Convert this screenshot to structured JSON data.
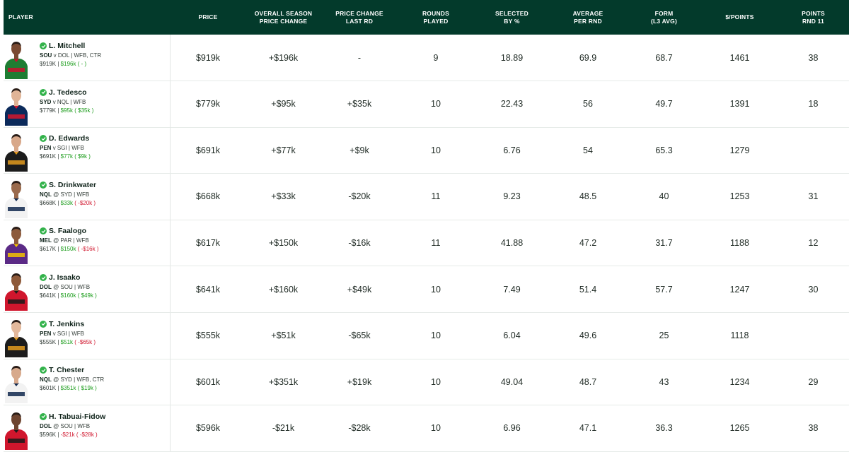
{
  "headers": {
    "player": "PLAYER",
    "price": "PRICE",
    "overall": "OVERALL SEASON\nPRICE CHANGE",
    "change_last": "PRICE CHANGE\nLAST RD",
    "rounds": "ROUNDS\nPLAYED",
    "selected": "SELECTED\nBY %",
    "average": "AVERAGE\nPER RND",
    "form": "FORM\n(L3 AVG)",
    "dollar_points": "$/POINTS",
    "points_rnd": "POINTS\nRND 11"
  },
  "rows": [
    {
      "name": "L. Mitchell",
      "team": "SOU",
      "sep": "v",
      "opp": "DOL",
      "positions": "WFB, CTR",
      "mini_price": "$919K",
      "mini_season": "$196k",
      "mini_last": "-",
      "mini_last_class": "pos",
      "price": "$919k",
      "overall": "+$196k",
      "overall_class": "pos",
      "change_last": "-",
      "change_class": "",
      "rounds": "9",
      "selected": "18.89",
      "average": "69.9",
      "form": "68.7",
      "dollar_points": "1461",
      "points_rnd": "38",
      "jersey": "#1e7d32",
      "jersey2": "#c8102e",
      "skin": "#7a4a32"
    },
    {
      "name": "J. Tedesco",
      "team": "SYD",
      "sep": "v",
      "opp": "NQL",
      "positions": "WFB",
      "mini_price": "$779K",
      "mini_season": "$95k",
      "mini_last": "$35k",
      "mini_last_class": "pos",
      "price": "$779k",
      "overall": "+$95k",
      "overall_class": "pos",
      "change_last": "+$35k",
      "change_class": "pos",
      "rounds": "10",
      "selected": "22.43",
      "average": "56",
      "form": "49.7",
      "dollar_points": "1391",
      "points_rnd": "18",
      "jersey": "#0b2a5b",
      "jersey2": "#d4162d",
      "skin": "#e0b497"
    },
    {
      "name": "D. Edwards",
      "team": "PEN",
      "sep": "v",
      "opp": "SGI",
      "positions": "WFB",
      "mini_price": "$691K",
      "mini_season": "$77k",
      "mini_last": "$9k",
      "mini_last_class": "pos",
      "price": "$691k",
      "overall": "+$77k",
      "overall_class": "pos",
      "change_last": "+$9k",
      "change_class": "pos",
      "rounds": "10",
      "selected": "6.76",
      "average": "54",
      "form": "65.3",
      "dollar_points": "1279",
      "points_rnd": "",
      "jersey": "#1c1c1c",
      "jersey2": "#e29a1d",
      "skin": "#d8a88a"
    },
    {
      "name": "S. Drinkwater",
      "team": "NQL",
      "sep": "@",
      "opp": "SYD",
      "positions": "WFB",
      "mini_price": "$668K",
      "mini_season": "$33k",
      "mini_last": "-$20k",
      "mini_last_class": "neg",
      "price": "$668k",
      "overall": "+$33k",
      "overall_class": "pos",
      "change_last": "-$20k",
      "change_class": "neg",
      "rounds": "11",
      "selected": "9.23",
      "average": "48.5",
      "form": "40",
      "dollar_points": "1253",
      "points_rnd": "31",
      "jersey": "#f2f2f2",
      "jersey2": "#10284e",
      "skin": "#9a6a4c"
    },
    {
      "name": "S. Faalogo",
      "team": "MEL",
      "sep": "@",
      "opp": "PAR",
      "positions": "WFB",
      "mini_price": "$617K",
      "mini_season": "$150k",
      "mini_last": "-$16k",
      "mini_last_class": "neg",
      "price": "$617k",
      "overall": "+$150k",
      "overall_class": "pos",
      "change_last": "-$16k",
      "change_class": "neg",
      "rounds": "11",
      "selected": "41.88",
      "average": "47.2",
      "form": "31.7",
      "dollar_points": "1188",
      "points_rnd": "12",
      "jersey": "#5b2a86",
      "jersey2": "#f3c300",
      "skin": "#8c5a3c"
    },
    {
      "name": "J. Isaako",
      "team": "DOL",
      "sep": "@",
      "opp": "SOU",
      "positions": "WFB",
      "mini_price": "$641K",
      "mini_season": "$160k",
      "mini_last": "$49k",
      "mini_last_class": "pos",
      "price": "$641k",
      "overall": "+$160k",
      "overall_class": "pos",
      "change_last": "+$49k",
      "change_class": "pos",
      "rounds": "10",
      "selected": "7.49",
      "average": "51.4",
      "form": "57.7",
      "dollar_points": "1247",
      "points_rnd": "30",
      "jersey": "#d0162d",
      "jersey2": "#1a1a1a",
      "skin": "#8e5a3a"
    },
    {
      "name": "T. Jenkins",
      "team": "PEN",
      "sep": "v",
      "opp": "SGI",
      "positions": "WFB",
      "mini_price": "$555K",
      "mini_season": "$51k",
      "mini_last": "-$65k",
      "mini_last_class": "neg",
      "price": "$555k",
      "overall": "+$51k",
      "overall_class": "pos",
      "change_last": "-$65k",
      "change_class": "neg",
      "rounds": "10",
      "selected": "6.04",
      "average": "49.6",
      "form": "25",
      "dollar_points": "1118",
      "points_rnd": "",
      "jersey": "#1c1c1c",
      "jersey2": "#e29a1d",
      "skin": "#e4b99c"
    },
    {
      "name": "T. Chester",
      "team": "NQL",
      "sep": "@",
      "opp": "SYD",
      "positions": "WFB, CTR",
      "mini_price": "$601K",
      "mini_season": "$351k",
      "mini_last": "$19k",
      "mini_last_class": "pos",
      "price": "$601k",
      "overall": "+$351k",
      "overall_class": "pos",
      "change_last": "+$19k",
      "change_class": "pos",
      "rounds": "10",
      "selected": "49.04",
      "average": "48.7",
      "form": "43",
      "dollar_points": "1234",
      "points_rnd": "29",
      "jersey": "#f2f2f2",
      "jersey2": "#10284e",
      "skin": "#d7a98c"
    },
    {
      "name": "H. Tabuai-Fidow",
      "team": "DOL",
      "sep": "@",
      "opp": "SOU",
      "positions": "WFB",
      "mini_price": "$596K",
      "mini_season": "-$21k",
      "mini_season_class": "neg",
      "mini_last": "-$28k",
      "mini_last_class": "neg",
      "price": "$596k",
      "overall": "-$21k",
      "overall_class": "neg",
      "change_last": "-$28k",
      "change_class": "neg",
      "rounds": "10",
      "selected": "6.96",
      "average": "47.1",
      "form": "36.3",
      "dollar_points": "1265",
      "points_rnd": "38",
      "jersey": "#d0162d",
      "jersey2": "#1a1a1a",
      "skin": "#6e4530"
    }
  ]
}
